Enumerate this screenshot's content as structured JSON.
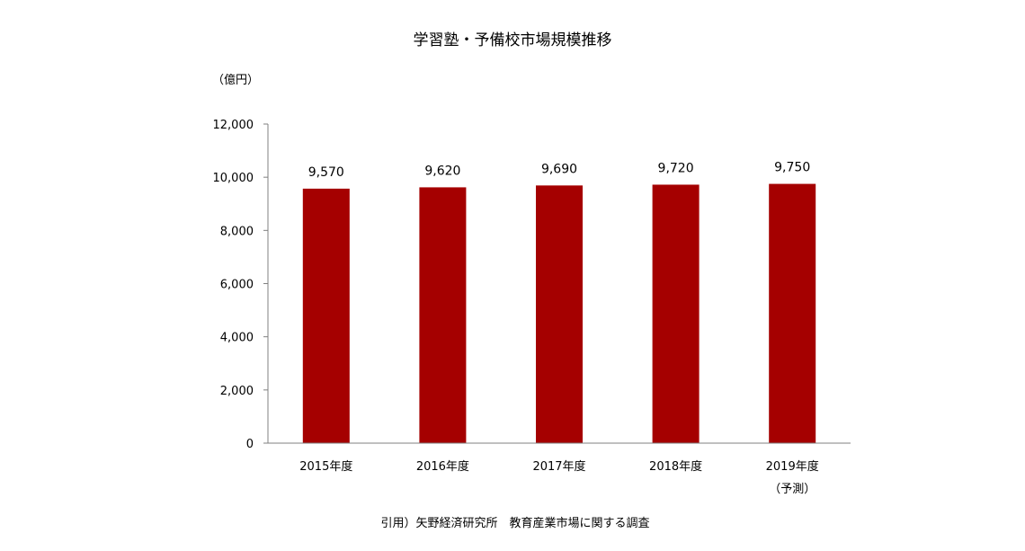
{
  "chart_data": {
    "type": "bar",
    "title": "学習塾・予備校市場規模推移",
    "ylabel": "（億円）",
    "xlabel": "",
    "categories": [
      "2015年度",
      "2016年度",
      "2017年度",
      "2018年度",
      "2019年度"
    ],
    "category_notes": [
      "",
      "",
      "",
      "",
      "（予測）"
    ],
    "values": [
      9570,
      9620,
      9690,
      9720,
      9750
    ],
    "data_labels": [
      "9,570",
      "9,620",
      "9,690",
      "9,720",
      "9,750"
    ],
    "ylim": [
      0,
      12000
    ],
    "yticks": [
      0,
      2000,
      4000,
      6000,
      8000,
      10000,
      12000
    ],
    "ytick_labels": [
      "0",
      "2,000",
      "4,000",
      "6,000",
      "8,000",
      "10,000",
      "12,000"
    ],
    "grid": false,
    "legend": "none",
    "bar_color": "#a50000",
    "axis_color": "#808080"
  },
  "footer": {
    "source": "引用）矢野経済研究所　教育産業市場に関する調査"
  }
}
